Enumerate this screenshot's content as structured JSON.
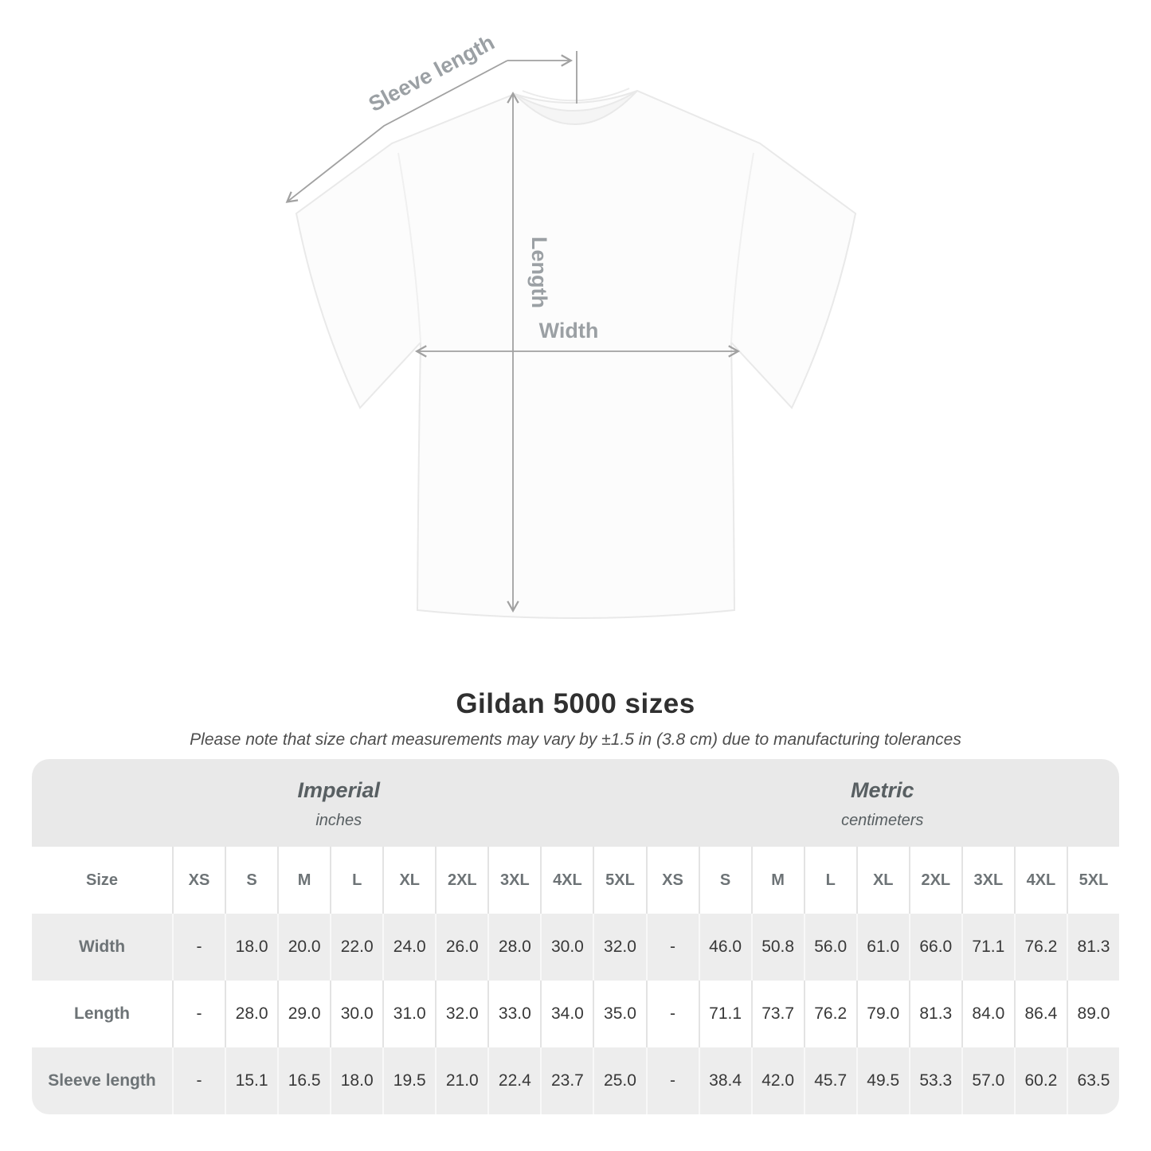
{
  "diagram": {
    "sleeve_label": "Sleeve length",
    "length_label": "Length",
    "width_label": "Width"
  },
  "chart_data": {
    "type": "table",
    "title": "Gildan 5000 sizes",
    "subtitle": "Please note that size chart measurements may vary by ±1.5 in (3.8 cm) due to manufacturing tolerances",
    "size_label": "Size",
    "sizes": [
      "XS",
      "S",
      "M",
      "L",
      "XL",
      "2XL",
      "3XL",
      "4XL",
      "5XL"
    ],
    "unit_groups": [
      {
        "name": "Imperial",
        "unit": "inches"
      },
      {
        "name": "Metric",
        "unit": "centimeters"
      }
    ],
    "rows": [
      {
        "label": "Width",
        "imperial": [
          "-",
          "18.0",
          "20.0",
          "22.0",
          "24.0",
          "26.0",
          "28.0",
          "30.0",
          "32.0"
        ],
        "metric": [
          "-",
          "46.0",
          "50.8",
          "56.0",
          "61.0",
          "66.0",
          "71.1",
          "76.2",
          "81.3"
        ]
      },
      {
        "label": "Length",
        "imperial": [
          "-",
          "28.0",
          "29.0",
          "30.0",
          "31.0",
          "32.0",
          "33.0",
          "34.0",
          "35.0"
        ],
        "metric": [
          "-",
          "71.1",
          "73.7",
          "76.2",
          "79.0",
          "81.3",
          "84.0",
          "86.4",
          "89.0"
        ]
      },
      {
        "label": "Sleeve length",
        "imperial": [
          "-",
          "15.1",
          "16.5",
          "18.0",
          "19.5",
          "21.0",
          "22.4",
          "23.7",
          "25.0"
        ],
        "metric": [
          "-",
          "38.4",
          "42.0",
          "45.7",
          "49.5",
          "53.3",
          "57.0",
          "60.2",
          "63.5"
        ]
      }
    ]
  },
  "colors": {
    "annotation_gray": "#9ba0a4",
    "arrow_gray": "#a1a1a1",
    "header_band": "#e9e9e9",
    "row_alt": "#ededed",
    "value_text": "#383838",
    "label_text": "#6d7376",
    "title_text": "#303030"
  }
}
